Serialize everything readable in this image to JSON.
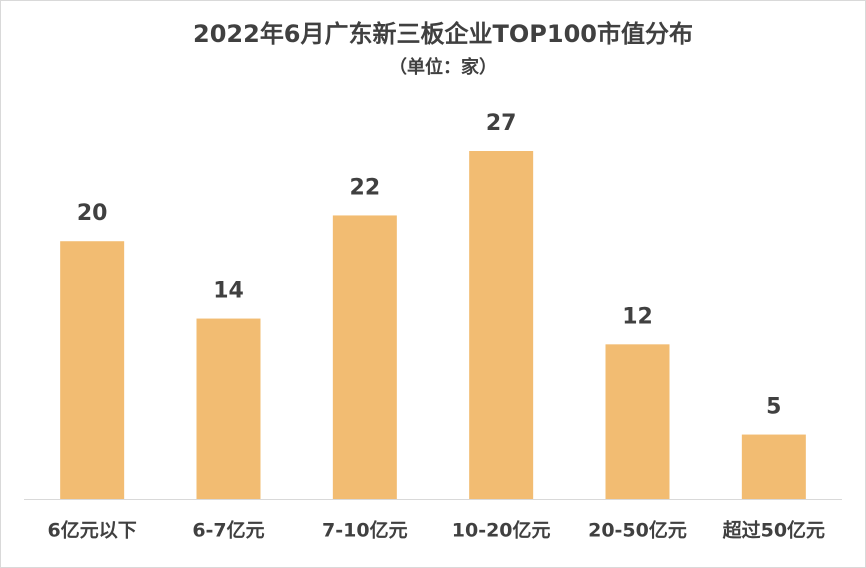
{
  "chart_data": {
    "type": "bar",
    "title": "2022年6月广东新三板企业TOP100市值分布",
    "subtitle": "（单位：家）",
    "categories": [
      "6亿元以下",
      "6-7亿元",
      "7-10亿元",
      "10-20亿元",
      "20-50亿元",
      "超过50亿元"
    ],
    "values": [
      20,
      14,
      22,
      27,
      12,
      5
    ],
    "color": "#f2bc72"
  }
}
